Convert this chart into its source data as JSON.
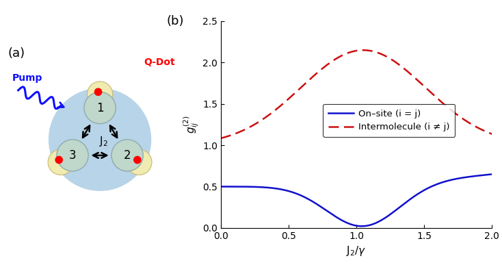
{
  "fig_width": 7.34,
  "fig_height": 3.87,
  "dpi": 100,
  "panel_a_label": "(a)",
  "panel_b_label": "(b)",
  "qdot_label": "Q-Dot",
  "qdot_color": "#ff0000",
  "pump_label": "Pump",
  "pump_color": "#1010ff",
  "bg_circle_color": "#b8d4e8",
  "cavity_color": "#c0d8cc",
  "cavity_edge_color": "#90aaaa",
  "qdot_outer_color": "#f0ebb0",
  "qdot_edge_color": "#c8b870",
  "xlabel": "J$_2$/$\\gamma$",
  "ylabel": "$g^{(2)}_{ij}$",
  "xlim": [
    0,
    2
  ],
  "ylim": [
    0,
    2.5
  ],
  "xticks": [
    0,
    0.5,
    1.0,
    1.5,
    2.0
  ],
  "yticks": [
    0,
    0.5,
    1.0,
    1.5,
    2.0,
    2.5
  ],
  "onsite_color": "#1010cc",
  "inter_color": "#cc1010",
  "legend_onsite": "On–site (i = j)",
  "legend_inter": "Intermolecule (i ≠ j)"
}
